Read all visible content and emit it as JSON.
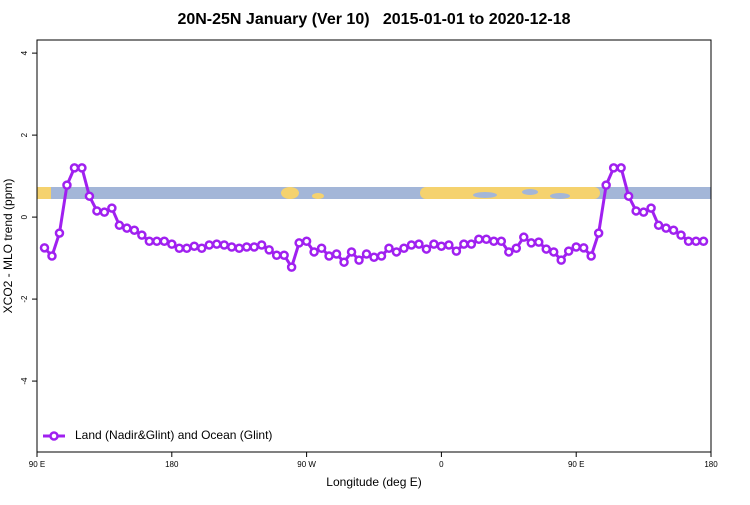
{
  "chart_data": {
    "type": "line",
    "title": "20N-25N January (Ver 10)   2015-01-01 to 2020-12-18",
    "x_label": "Longitude (deg E)",
    "y_label": "XCO2 - MLO trend (ppm)",
    "x": [
      95,
      100,
      105,
      110,
      115,
      120,
      125,
      130,
      135,
      140,
      145,
      150,
      155,
      160,
      165,
      170,
      175,
      180,
      185,
      190,
      195,
      200,
      205,
      210,
      215,
      220,
      225,
      230,
      235,
      240,
      245,
      250,
      255,
      260,
      265,
      270,
      275,
      280,
      285,
      290,
      295,
      300,
      305,
      310,
      315,
      320,
      325,
      330,
      335,
      340,
      345,
      350,
      355,
      360,
      365,
      370,
      375,
      380,
      385,
      390,
      395,
      400,
      405,
      410,
      415,
      420,
      425,
      430,
      435,
      440,
      445,
      450,
      455,
      460,
      465,
      470,
      475,
      480,
      485,
      490,
      495,
      500,
      505,
      510,
      515,
      520,
      525,
      530,
      535
    ],
    "series": [
      {
        "name": "Land (Nadir&Glint) and Ocean (Glint)",
        "color": "#a020f0",
        "values": [
          -0.75,
          -0.95,
          -0.39,
          0.78,
          1.2,
          1.2,
          0.51,
          0.15,
          0.12,
          0.22,
          -0.2,
          -0.27,
          -0.32,
          -0.44,
          -0.59,
          -0.59,
          -0.59,
          -0.66,
          -0.76,
          -0.76,
          -0.71,
          -0.76,
          -0.68,
          -0.66,
          -0.68,
          -0.73,
          -0.76,
          -0.73,
          -0.73,
          -0.68,
          -0.8,
          -0.93,
          -0.93,
          -1.22,
          -0.63,
          -0.59,
          -0.85,
          -0.76,
          -0.95,
          -0.9,
          -1.1,
          -0.85,
          -1.05,
          -0.9,
          -0.98,
          -0.95,
          -0.76,
          -0.85,
          -0.76,
          -0.68,
          -0.66,
          -0.78,
          -0.66,
          -0.71,
          -0.68,
          -0.83,
          -0.66,
          -0.66,
          -0.54,
          -0.54,
          -0.59,
          -0.59,
          -0.85,
          -0.76,
          -0.49,
          -0.63,
          -0.61,
          -0.78,
          -0.85,
          -1.05,
          -0.83,
          -0.73,
          -0.75,
          -0.95,
          -0.39,
          0.78,
          1.2,
          1.2,
          0.51,
          0.15,
          0.12,
          0.22,
          -0.2,
          -0.27,
          -0.32,
          -0.44,
          -0.59,
          -0.59,
          -0.59
        ]
      }
    ],
    "xlim": [
      90,
      540
    ],
    "xticks": [
      {
        "value": 90,
        "label": "90 E"
      },
      180,
      {
        "value": 270,
        "label": "90 W"
      },
      {
        "value": 360,
        "label": "0"
      },
      {
        "value": 450,
        "label": "90 E"
      },
      {
        "value": 540,
        "label": "180"
      }
    ],
    "ylim": [
      -5.73,
      4.32
    ],
    "yticks": [
      -4,
      -2,
      0,
      2,
      4
    ],
    "legend": "bottom-left"
  }
}
